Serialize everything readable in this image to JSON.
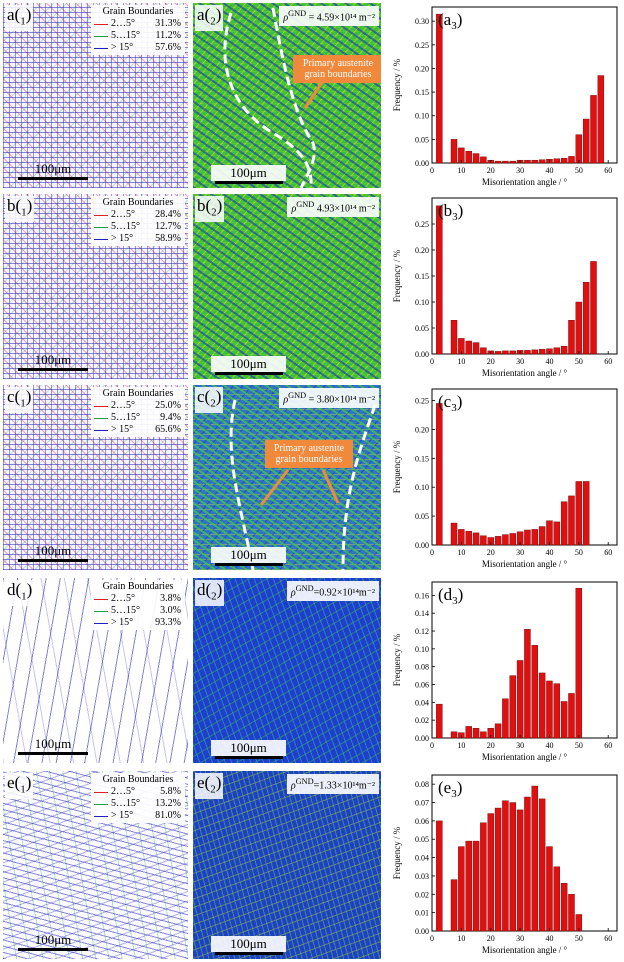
{
  "rows": [
    {
      "gb": {
        "label_letter": "a",
        "label_sub": "1",
        "legend_title": "Grain Boundaries",
        "legend": [
          {
            "range": "2…5°",
            "pct": "31.3%"
          },
          {
            "range": "5…15°",
            "pct": "11.2%"
          },
          {
            "range": "> 15°",
            "pct": "57.6%"
          }
        ],
        "scale_text": "100μm"
      },
      "gnd": {
        "label_letter": "a",
        "label_sub": "2",
        "rho_symbol": "ρ",
        "rho_sup": "GND",
        "rho_text": "= 4.59×10¹⁴ m⁻²",
        "annotation": "Primary austenite grain boundaries",
        "scale_text": "100μm"
      },
      "hist": {
        "label_letter": "a",
        "label_sub": "3"
      }
    },
    {
      "gb": {
        "label_letter": "b",
        "label_sub": "1",
        "legend_title": "Grain Boundaries",
        "legend": [
          {
            "range": "2…5°",
            "pct": "28.4%"
          },
          {
            "range": "5…15°",
            "pct": "12.7%"
          },
          {
            "range": "> 15°",
            "pct": "58.9%"
          }
        ],
        "scale_text": "100μm"
      },
      "gnd": {
        "label_letter": "b",
        "label_sub": "2",
        "rho_symbol": "ρ",
        "rho_sup": "GND",
        "rho_text": "4.93×10¹⁴ m⁻²",
        "annotation": "",
        "scale_text": "100μm"
      },
      "hist": {
        "label_letter": "b",
        "label_sub": "3"
      }
    },
    {
      "gb": {
        "label_letter": "c",
        "label_sub": "1",
        "legend_title": "Grain Boundaries",
        "legend": [
          {
            "range": "2…5°",
            "pct": "25.0%"
          },
          {
            "range": "5…15°",
            "pct": "9.4%"
          },
          {
            "range": "> 15°",
            "pct": "65.6%"
          }
        ],
        "scale_text": "100μm"
      },
      "gnd": {
        "label_letter": "c",
        "label_sub": "2",
        "rho_symbol": "ρ",
        "rho_sup": "GND",
        "rho_text": "= 3.80×10¹⁴ m⁻²",
        "annotation": "Primary austenite grain boundaries",
        "scale_text": "100μm"
      },
      "hist": {
        "label_letter": "c",
        "label_sub": "3"
      }
    },
    {
      "gb": {
        "label_letter": "d",
        "label_sub": "1",
        "legend_title": "Grain Boundaries",
        "legend": [
          {
            "range": "2…5°",
            "pct": "3.8%"
          },
          {
            "range": "5…15°",
            "pct": "3.0%"
          },
          {
            "range": "> 15°",
            "pct": "93.3%"
          }
        ],
        "scale_text": "100μm"
      },
      "gnd": {
        "label_letter": "d",
        "label_sub": "2",
        "rho_symbol": "ρ",
        "rho_sup": "GND",
        "rho_text": "=0.92×10¹⁴m⁻²",
        "annotation": "",
        "scale_text": "100μm"
      },
      "hist": {
        "label_letter": "d",
        "label_sub": "3"
      }
    },
    {
      "gb": {
        "label_letter": "e",
        "label_sub": "1",
        "legend_title": "Grain Boundaries",
        "legend": [
          {
            "range": "2…5°",
            "pct": "5.8%"
          },
          {
            "range": "5…15°",
            "pct": "13.2%"
          },
          {
            "range": "> 15°",
            "pct": "81.0%"
          }
        ],
        "scale_text": "100μm"
      },
      "gnd": {
        "label_letter": "e",
        "label_sub": "2",
        "rho_symbol": "ρ",
        "rho_sup": "GND",
        "rho_text": "=1.33×10¹⁴m⁻²",
        "annotation": "",
        "scale_text": "100μm"
      },
      "hist": {
        "label_letter": "e",
        "label_sub": "3"
      }
    }
  ],
  "colors": {
    "low_angle": "#e02020",
    "mid_angle": "#20a040",
    "high_angle": "#2020c0",
    "annotation": "#f0893c",
    "bar": "#e01010"
  },
  "chart_data": [
    {
      "type": "bar",
      "panel": "(a3)",
      "xlabel": "Misorientation angle / °",
      "ylabel": "Frequency / %",
      "xlim": [
        0,
        63
      ],
      "ylim": [
        0,
        0.33
      ],
      "xticks": [
        0,
        10,
        20,
        30,
        40,
        50,
        60
      ],
      "yticks": [
        0.0,
        0.05,
        0.1,
        0.15,
        0.2,
        0.25,
        0.3
      ],
      "x": [
        2.5,
        7.5,
        10,
        12.5,
        15,
        17.5,
        20,
        22.5,
        25,
        27.5,
        30,
        32.5,
        35,
        37.5,
        40,
        42.5,
        45,
        47.5,
        50,
        52.5,
        55,
        57.5,
        60
      ],
      "values": [
        0.315,
        0.05,
        0.032,
        0.025,
        0.02,
        0.013,
        0.006,
        0.004,
        0.004,
        0.004,
        0.006,
        0.006,
        0.006,
        0.007,
        0.008,
        0.009,
        0.01,
        0.014,
        0.06,
        0.093,
        0.143,
        0.185,
        0.0
      ]
    },
    {
      "type": "bar",
      "panel": "(b3)",
      "xlabel": "Misorientation angle / °",
      "ylabel": "Frequency / %",
      "xlim": [
        0,
        63
      ],
      "ylim": [
        0,
        0.3
      ],
      "xticks": [
        0,
        10,
        20,
        30,
        40,
        50,
        60
      ],
      "yticks": [
        0.0,
        0.05,
        0.1,
        0.15,
        0.2,
        0.25
      ],
      "x": [
        2.5,
        7.5,
        10,
        12.5,
        15,
        17.5,
        20,
        22.5,
        25,
        27.5,
        30,
        32.5,
        35,
        37.5,
        40,
        42.5,
        45,
        47.5,
        50,
        52.5,
        55,
        57.5,
        60
      ],
      "values": [
        0.285,
        0.065,
        0.03,
        0.025,
        0.022,
        0.012,
        0.006,
        0.005,
        0.006,
        0.006,
        0.007,
        0.007,
        0.008,
        0.009,
        0.01,
        0.012,
        0.015,
        0.065,
        0.1,
        0.138,
        0.178,
        0.0,
        0.0
      ]
    },
    {
      "type": "bar",
      "panel": "(c3)",
      "xlabel": "Misorientation angle / °",
      "ylabel": "Frequency / %",
      "xlim": [
        0,
        63
      ],
      "ylim": [
        0,
        0.27
      ],
      "xticks": [
        0,
        10,
        20,
        30,
        40,
        50,
        60
      ],
      "yticks": [
        0.0,
        0.05,
        0.1,
        0.15,
        0.2,
        0.25
      ],
      "x": [
        2.5,
        7.5,
        10,
        12.5,
        15,
        17.5,
        20,
        22.5,
        25,
        27.5,
        30,
        32.5,
        35,
        37.5,
        40,
        42.5,
        45,
        47.5,
        50,
        52.5,
        55,
        57.5,
        60
      ],
      "values": [
        0.245,
        0.038,
        0.027,
        0.024,
        0.021,
        0.016,
        0.013,
        0.015,
        0.018,
        0.02,
        0.023,
        0.026,
        0.027,
        0.032,
        0.042,
        0.04,
        0.075,
        0.085,
        0.11,
        0.11,
        0.0,
        0.0,
        0.0
      ]
    },
    {
      "type": "bar",
      "panel": "(d3)",
      "xlabel": "Misorientation angle / °",
      "ylabel": "Frequency / %",
      "xlim": [
        0,
        63
      ],
      "ylim": [
        0,
        0.175
      ],
      "xticks": [
        0,
        10,
        20,
        30,
        40,
        50,
        60
      ],
      "yticks": [
        0.0,
        0.02,
        0.04,
        0.06,
        0.08,
        0.1,
        0.12,
        0.14,
        0.16
      ],
      "x": [
        2.5,
        7.5,
        10,
        12.5,
        15,
        17.5,
        20,
        22.5,
        25,
        27.5,
        30,
        32.5,
        35,
        37.5,
        40,
        42.5,
        45,
        47.5,
        50,
        52.5,
        55,
        57.5,
        60
      ],
      "values": [
        0.038,
        0.007,
        0.006,
        0.013,
        0.011,
        0.007,
        0.011,
        0.016,
        0.044,
        0.07,
        0.087,
        0.122,
        0.104,
        0.073,
        0.064,
        0.061,
        0.041,
        0.05,
        0.168,
        0.0,
        0.0,
        0.0,
        0.0
      ]
    },
    {
      "type": "bar",
      "panel": "(e3)",
      "xlabel": "Misorientation angle / °",
      "ylabel": "Frequency / %",
      "xlim": [
        0,
        63
      ],
      "ylim": [
        0,
        0.085
      ],
      "xticks": [
        0,
        10,
        20,
        30,
        40,
        50,
        60
      ],
      "yticks": [
        0.0,
        0.01,
        0.02,
        0.03,
        0.04,
        0.05,
        0.06,
        0.07,
        0.08
      ],
      "x": [
        2.5,
        7.5,
        10,
        12.5,
        15,
        17.5,
        20,
        22.5,
        25,
        27.5,
        30,
        32.5,
        35,
        37.5,
        40,
        42.5,
        45,
        47.5,
        50,
        52.5,
        55,
        57.5,
        60
      ],
      "values": [
        0.06,
        0.028,
        0.046,
        0.049,
        0.049,
        0.059,
        0.064,
        0.067,
        0.071,
        0.07,
        0.066,
        0.073,
        0.079,
        0.072,
        0.046,
        0.035,
        0.026,
        0.02,
        0.009,
        0.0,
        0.0,
        0.0,
        0.0
      ]
    }
  ]
}
